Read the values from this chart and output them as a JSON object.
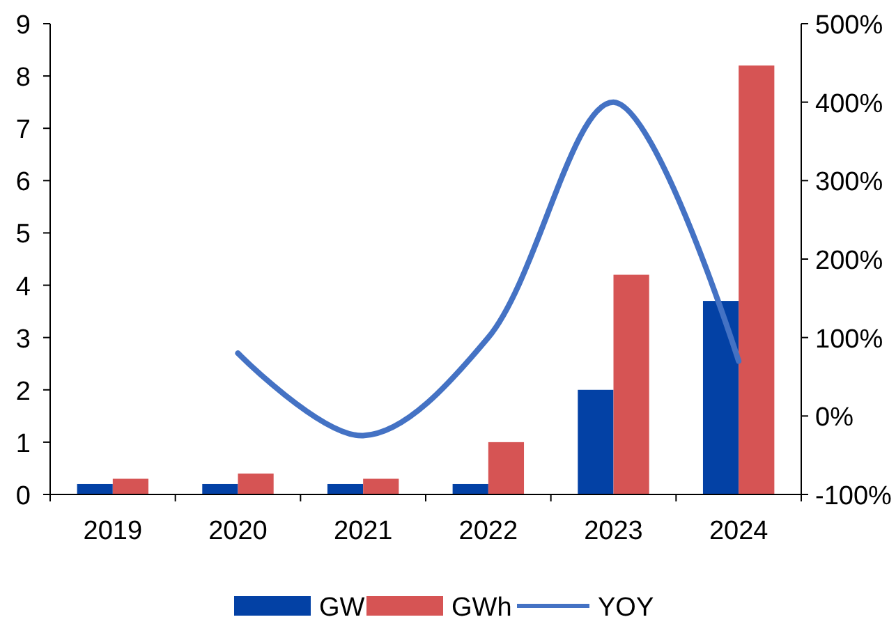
{
  "chart_data": {
    "type": "bar",
    "categories": [
      "2019",
      "2020",
      "2021",
      "2022",
      "2023",
      "2024"
    ],
    "series": [
      {
        "name": "GW",
        "color": "#0341a5",
        "values": [
          0.2,
          0.2,
          0.2,
          0.2,
          2,
          3.7
        ]
      },
      {
        "name": "GWh",
        "color": "#d65454",
        "values": [
          0.3,
          0.4,
          0.3,
          1,
          4.2,
          8.2
        ]
      },
      {
        "name": "YOY",
        "type": "line",
        "axis": "y2",
        "color": "#4472c4",
        "values": [
          null,
          80,
          -25,
          100,
          400,
          70
        ]
      }
    ],
    "ylim": [
      0,
      9
    ],
    "yticks": [
      0,
      1,
      2,
      3,
      4,
      5,
      6,
      7,
      8,
      9
    ],
    "y2lim": [
      -100,
      500
    ],
    "y2ticks": [
      {
        "value": -100,
        "label": "-100%"
      },
      {
        "value": 0,
        "label": "0%"
      },
      {
        "value": 100,
        "label": "100%"
      },
      {
        "value": 200,
        "label": "200%"
      },
      {
        "value": 300,
        "label": "300%"
      },
      {
        "value": 400,
        "label": "400%"
      },
      {
        "value": 500,
        "label": "500%"
      }
    ],
    "legend": "bottom",
    "grid": false
  }
}
